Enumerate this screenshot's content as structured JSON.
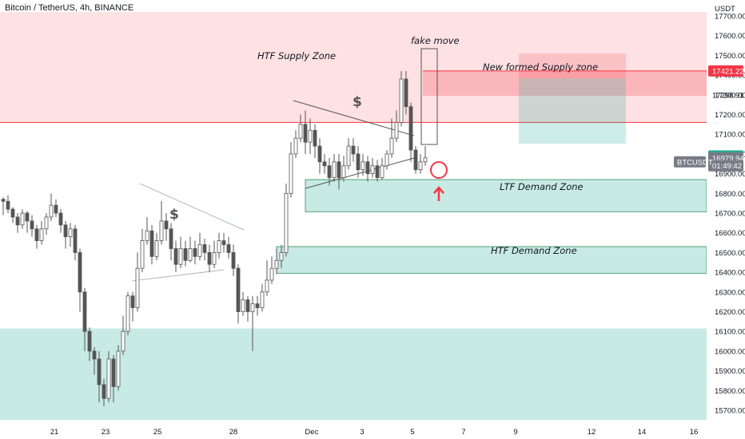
{
  "header": {
    "symbol": "Bitcoin / TetherUS, 4h, BINANCE"
  },
  "axis": {
    "currency": "USDT"
  },
  "chart_data": {
    "type": "candlestick",
    "title": "Bitcoin / TetherUS, 4h, BINANCE",
    "ylim": [
      15650,
      17720
    ],
    "y_ticks": [
      15700,
      15800,
      15900,
      16000,
      16100,
      16200,
      16300,
      16400,
      16500,
      16600,
      16700,
      16800,
      16900,
      17000,
      17100,
      17200,
      17300,
      17400,
      17500,
      17600,
      17700
    ],
    "y_tick_labels": [
      "15700.00",
      "15800.00",
      "15900.00",
      "16000.00",
      "16100.00",
      "16200.00",
      "16300.00",
      "16400.00",
      "16500.00",
      "16600.00",
      "16700.00",
      "16800.00",
      "16900.00",
      "17000.00",
      "17100.00",
      "17200.00",
      "17300.00",
      "17400.00",
      "17500.00",
      "17600.00",
      "17700.00"
    ],
    "x_tick_labels": [
      "21",
      "23",
      "25",
      "28",
      "Dec",
      "3",
      "5",
      "7",
      "9",
      "12",
      "14",
      "16"
    ],
    "price_tags": [
      {
        "label": "17421.22",
        "value": 17421.22,
        "color": "#f23645"
      },
      {
        "label": "17298.91",
        "value": 17298.91,
        "color": "none"
      },
      {
        "label": "16989.99",
        "value": 16989.99,
        "color": "#22ab94"
      },
      {
        "label": "16979.94",
        "value": 16979.94,
        "color": "#787b86"
      },
      {
        "label": "01:49:42",
        "value": 16940,
        "color": "#787b86"
      }
    ],
    "ticker_tag": "BTCUSDT",
    "zones": [
      {
        "label": "HTF Supply Zone",
        "low": 17160,
        "high": 17720,
        "color": "#f23645"
      },
      {
        "label": "New formed Supply zone",
        "low": 17295,
        "high": 17421,
        "color": "#f23645"
      },
      {
        "label": "LTF Demand Zone",
        "low": 16707,
        "high": 16870,
        "color": "#22ab94"
      },
      {
        "label": "HTF Demand Zone",
        "low": 16395,
        "high": 16530,
        "color": "#22ab94"
      },
      {
        "label": "",
        "low": 15650,
        "high": 16115,
        "color": "#22ab94"
      }
    ],
    "annotations": [
      "fake move",
      "$",
      "$"
    ],
    "candles": [
      [
        16770,
        16760,
        16690,
        16780
      ],
      [
        16760,
        16720,
        16700,
        16790
      ],
      [
        16720,
        16680,
        16650,
        16730
      ],
      [
        16680,
        16640,
        16600,
        16700
      ],
      [
        16640,
        16700,
        16620,
        16720
      ],
      [
        16700,
        16660,
        16600,
        16710
      ],
      [
        16660,
        16620,
        16580,
        16690
      ],
      [
        16620,
        16560,
        16520,
        16640
      ],
      [
        16560,
        16620,
        16540,
        16660
      ],
      [
        16620,
        16680,
        16590,
        16700
      ],
      [
        16680,
        16740,
        16660,
        16800
      ],
      [
        16740,
        16700,
        16680,
        16770
      ],
      [
        16700,
        16640,
        16600,
        16720
      ],
      [
        16640,
        16580,
        16520,
        16660
      ],
      [
        16580,
        16620,
        16530,
        16650
      ],
      [
        16620,
        16500,
        16460,
        16640
      ],
      [
        16500,
        16300,
        16200,
        16520
      ],
      [
        16300,
        16100,
        16000,
        16320
      ],
      [
        16100,
        16000,
        15950,
        16120
      ],
      [
        16000,
        15960,
        15880,
        16020
      ],
      [
        15960,
        15830,
        15740,
        16000
      ],
      [
        15830,
        15760,
        15720,
        15860
      ],
      [
        15760,
        15960,
        15740,
        16000
      ],
      [
        15960,
        15820,
        15740,
        15980
      ],
      [
        15820,
        16000,
        15800,
        16030
      ],
      [
        16000,
        16100,
        15980,
        16180
      ],
      [
        16100,
        16280,
        16080,
        16300
      ],
      [
        16280,
        16220,
        16150,
        16300
      ],
      [
        16220,
        16420,
        16200,
        16500
      ],
      [
        16420,
        16560,
        16400,
        16620
      ],
      [
        16560,
        16610,
        16540,
        16680
      ],
      [
        16610,
        16480,
        16440,
        16640
      ],
      [
        16480,
        16560,
        16460,
        16600
      ],
      [
        16560,
        16660,
        16540,
        16760
      ],
      [
        16660,
        16620,
        16560,
        16700
      ],
      [
        16620,
        16520,
        16460,
        16650
      ],
      [
        16520,
        16440,
        16400,
        16560
      ],
      [
        16440,
        16520,
        16420,
        16580
      ],
      [
        16520,
        16460,
        16430,
        16560
      ],
      [
        16460,
        16520,
        16450,
        16580
      ],
      [
        16520,
        16480,
        16440,
        16560
      ],
      [
        16480,
        16540,
        16460,
        16600
      ],
      [
        16540,
        16500,
        16460,
        16570
      ],
      [
        16500,
        16440,
        16400,
        16540
      ],
      [
        16440,
        16500,
        16420,
        16560
      ],
      [
        16500,
        16560,
        16470,
        16600
      ],
      [
        16560,
        16540,
        16500,
        16600
      ],
      [
        16540,
        16500,
        16470,
        16580
      ],
      [
        16500,
        16420,
        16380,
        16540
      ],
      [
        16420,
        16200,
        16140,
        16440
      ],
      [
        16200,
        16260,
        16180,
        16300
      ],
      [
        16260,
        16200,
        16150,
        16280
      ],
      [
        16200,
        16240,
        16000,
        16280
      ],
      [
        16240,
        16220,
        16180,
        16280
      ],
      [
        16220,
        16300,
        16200,
        16340
      ],
      [
        16300,
        16360,
        16280,
        16460
      ],
      [
        16360,
        16420,
        16340,
        16480
      ],
      [
        16420,
        16460,
        16390,
        16520
      ],
      [
        16460,
        16500,
        16420,
        16540
      ],
      [
        16500,
        16800,
        16480,
        16850
      ],
      [
        16800,
        17000,
        16780,
        17060
      ],
      [
        17000,
        17080,
        16980,
        17120
      ],
      [
        17080,
        17150,
        17060,
        17200
      ],
      [
        17150,
        17060,
        17000,
        17220
      ],
      [
        17060,
        17120,
        17000,
        17180
      ],
      [
        17120,
        17040,
        16980,
        17150
      ],
      [
        17040,
        16960,
        16900,
        17080
      ],
      [
        16960,
        16940,
        16900,
        17000
      ],
      [
        16940,
        16880,
        16840,
        16980
      ],
      [
        16880,
        16960,
        16860,
        17000
      ],
      [
        16960,
        16880,
        16820,
        17000
      ],
      [
        16880,
        16940,
        16860,
        16990
      ],
      [
        16940,
        17040,
        16920,
        17080
      ],
      [
        17040,
        17000,
        16960,
        17080
      ],
      [
        17000,
        16920,
        16880,
        17040
      ],
      [
        16920,
        16960,
        16890,
        17000
      ],
      [
        16960,
        16900,
        16860,
        16990
      ],
      [
        16900,
        16940,
        16880,
        16980
      ],
      [
        16940,
        16880,
        16860,
        16970
      ],
      [
        16880,
        16940,
        16870,
        16980
      ],
      [
        16940,
        17000,
        16920,
        17020
      ],
      [
        17000,
        17080,
        16980,
        17180
      ],
      [
        17080,
        17160,
        17060,
        17220
      ],
      [
        17160,
        17380,
        17140,
        17420
      ],
      [
        17380,
        17240,
        17200,
        17420
      ],
      [
        17240,
        17020,
        16960,
        17260
      ],
      [
        17020,
        16920,
        16900,
        17040
      ],
      [
        16920,
        16960,
        16900,
        17000
      ],
      [
        16960,
        16980,
        16940,
        17040
      ]
    ]
  }
}
